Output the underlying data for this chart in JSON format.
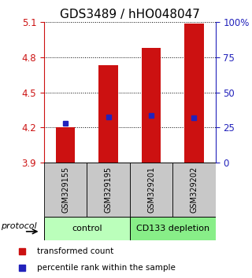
{
  "title": "GDS3489 / hHO048047",
  "samples": [
    "GSM329155",
    "GSM329195",
    "GSM329201",
    "GSM329202"
  ],
  "bar_values": [
    4.2,
    4.73,
    4.88,
    5.09
  ],
  "blue_markers": [
    4.235,
    4.29,
    4.305,
    4.285
  ],
  "bar_bottom": 3.9,
  "ylim": [
    3.9,
    5.1
  ],
  "yticks_left": [
    3.9,
    4.2,
    4.5,
    4.8,
    5.1
  ],
  "yticks_right": [
    0,
    25,
    50,
    75,
    100
  ],
  "yticks_right_labels": [
    "0",
    "25",
    "50",
    "75",
    "100%"
  ],
  "bar_color": "#cc1111",
  "blue_color": "#2222bb",
  "groups": [
    {
      "label": "control",
      "samples": [
        0,
        1
      ],
      "color": "#bbffbb"
    },
    {
      "label": "CD133 depletion",
      "samples": [
        2,
        3
      ],
      "color": "#88ee88"
    }
  ],
  "protocol_label": "protocol",
  "sample_box_color": "#c8c8c8",
  "legend_red_label": "transformed count",
  "legend_blue_label": "percentile rank within the sample",
  "title_fontsize": 11,
  "bar_width": 0.45,
  "gridline_style": "dotted"
}
